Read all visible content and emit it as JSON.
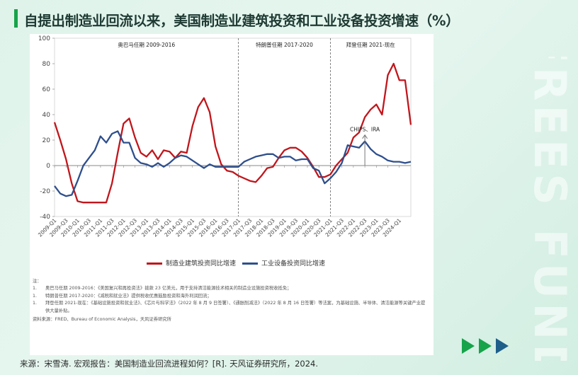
{
  "title": "自提出制造业回流以来，美国制造业建筑投资和工业设备投资增速（%）",
  "watermark": "FREES FUND",
  "chart_data": {
    "type": "line",
    "ylim": [
      -40,
      100
    ],
    "yticks": [
      -40,
      -20,
      0,
      20,
      40,
      60,
      80,
      100
    ],
    "x_labels": [
      "2009-Q1",
      "2009-Q3",
      "2010-Q1",
      "2010-Q3",
      "2011-Q1",
      "2011-Q3",
      "2012-Q1",
      "2012-Q3",
      "2013-Q1",
      "2013-Q3",
      "2014-Q1",
      "2014-Q3",
      "2015-Q1",
      "2015-Q3",
      "2016-Q1",
      "2016-Q3",
      "2017-Q1",
      "2017-Q3",
      "2018-Q1",
      "2018-Q3",
      "2019-Q1",
      "2019-Q3",
      "2020-Q1",
      "2020-Q3",
      "2021-Q1",
      "2021-Q3",
      "2022-Q1",
      "2022-Q3",
      "2023-Q1",
      "2023-Q3",
      "2024-Q1"
    ],
    "series": [
      {
        "name": "制造业建筑投资同比增速",
        "color": "#c0161c",
        "values": [
          34,
          20,
          5,
          -14,
          -28,
          -29,
          -29,
          -29,
          -29,
          -29,
          -14,
          10,
          33,
          37,
          22,
          10,
          7,
          12,
          5,
          12,
          11,
          6,
          11,
          10,
          31,
          46,
          53,
          42,
          15,
          1,
          -4,
          -5,
          -8,
          -10,
          -12,
          -13,
          -8,
          -2,
          -1,
          6,
          12,
          14,
          14,
          11,
          6,
          -1,
          -9,
          -9,
          -7,
          0,
          5,
          10,
          22,
          26,
          38,
          44,
          48,
          40,
          71,
          80,
          67,
          67,
          32
        ]
      },
      {
        "name": "工业设备投资同比增速",
        "color": "#2e4f8c",
        "values": [
          -16,
          -22,
          -24,
          -23,
          -12,
          0,
          6,
          12,
          23,
          18,
          25,
          27,
          18,
          18,
          6,
          2,
          1,
          -1,
          2,
          -1,
          2,
          6,
          8,
          7,
          4,
          1,
          -2,
          1,
          -1,
          -1,
          -1,
          -1,
          -1,
          3,
          5,
          7,
          8,
          9,
          9,
          6,
          7,
          7,
          4,
          5,
          5,
          -2,
          -4,
          -14,
          -10,
          -5,
          2,
          16,
          15,
          14,
          19,
          13,
          9,
          7,
          4,
          3,
          3,
          2,
          3
        ]
      }
    ],
    "periods": [
      {
        "label": "奥巴马任期 2009-2016"
      },
      {
        "label": "特朗普任期 2017-2020"
      },
      {
        "label": "拜登任期 2021-现在"
      }
    ],
    "annotation": "CHIPS、IRA"
  },
  "notes": {
    "heading": "注：",
    "items": [
      {
        "num": "1.",
        "text": "奥巴马任期 2009-2016：《美国复兴和再投资法》拨款 23 亿美元，用于支持清洁能源技术相关的制造业设施投资税收抵免；"
      },
      {
        "num": "1.",
        "text": "特朗普任期 2017-2020：《减税和就业法》提供税收优惠鼓励投资和海外利润回流；"
      },
      {
        "num": "1.",
        "text": "拜登任期 2021-现在：《基础设施投资和就业法》、《芯片与科学法》（2022 年 8 月 9 日签署）、《通胀削减法》（2022 年 8 月 16 日签署）等法案，为基础设施、半导体、清洁能源等关键产业提供大量补贴。"
      }
    ],
    "data_source": "资料来源：FRED、Bureau of Economic Analysis，天风证券研究所"
  },
  "source": "来源：宋雪涛. 宏观报告：美国制造业回流进程如何？[R]. 天风证券研究所，2024."
}
